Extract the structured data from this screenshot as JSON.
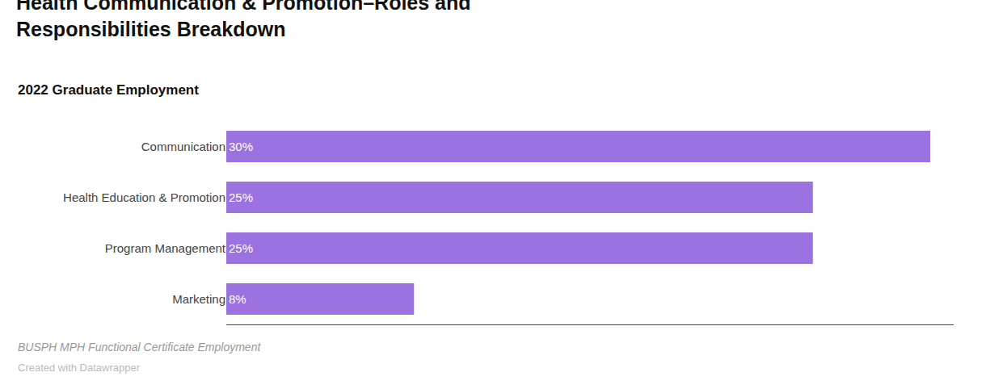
{
  "chart_data": {
    "type": "bar",
    "orientation": "horizontal",
    "title": "Health Communication & Promotion–Roles and\nResponsibilities Breakdown",
    "subtitle": "2022 Graduate Employment",
    "annotations": [
      "BUSPH MPH Functional Certificate Employment",
      "Created with Datawrapper"
    ],
    "categories": [
      "Communication",
      "Health Education & Promotion",
      "Program Management",
      "Marketing"
    ],
    "values": [
      30,
      25,
      25,
      8
    ],
    "value_labels": [
      "30%",
      "25%",
      "25%",
      "8%"
    ],
    "data_labels": true,
    "color": "#9b72e0",
    "xlim": [
      0,
      31
    ],
    "xticks": [],
    "tick_labels": "y",
    "grid": false
  }
}
